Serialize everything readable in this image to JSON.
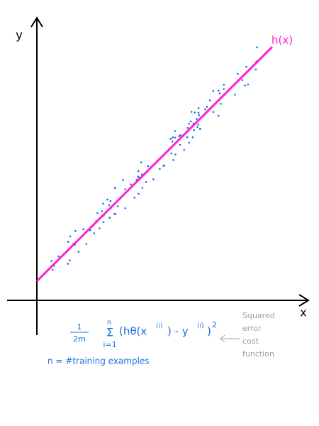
{
  "axes": {
    "y_label": "y",
    "x_label": "x"
  },
  "line_label": "h(x)",
  "formula": {
    "numerator": "1",
    "denominator": "2m",
    "sum_top": "n",
    "sigma": "Σ",
    "sum_bottom": "i=1",
    "part1": "(hθ(x",
    "sup1": "(i)",
    "part2": ")  - y",
    "sup2": "(i)",
    "part3": ")",
    "power": "2"
  },
  "note": "n = #training examples",
  "annotation": [
    "Squared",
    "error",
    "cost",
    "function"
  ]
}
